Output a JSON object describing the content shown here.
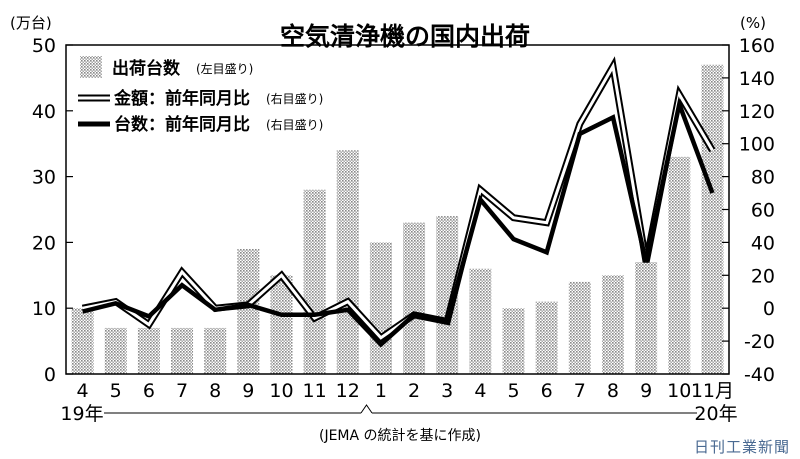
{
  "chart_data": {
    "type": "bar+line",
    "title": "空気清浄機の国内出荷",
    "y_left_unit": "(万台)",
    "y_right_unit": "(%)",
    "y_left_range": [
      0,
      50
    ],
    "y_left_ticks": [
      "0",
      "10",
      "20",
      "30",
      "40",
      "50"
    ],
    "y_right_range": [
      -40,
      160
    ],
    "y_right_ticks": [
      "-40",
      "-20",
      "0",
      "20",
      "40",
      "60",
      "80",
      "100",
      "120",
      "140",
      "160"
    ],
    "categories": [
      "4",
      "5",
      "6",
      "7",
      "8",
      "9",
      "10",
      "11",
      "12",
      "1",
      "2",
      "3",
      "4",
      "5",
      "6",
      "7",
      "8",
      "9",
      "10",
      "11月"
    ],
    "year_start_label": "19年",
    "year_end_label": "20年",
    "series": [
      {
        "name": "出荷台数",
        "legend_note": "(左目盛り)",
        "axis": "left",
        "kind": "bar",
        "values": [
          10,
          7,
          7,
          7,
          7,
          19,
          15,
          28,
          34,
          20,
          23,
          24,
          16,
          10,
          11,
          14,
          15,
          17,
          33,
          47
        ]
      },
      {
        "name": "金額：前年同月比",
        "legend_note": "(右目盛り)",
        "axis": "right",
        "kind": "line-outline",
        "values": [
          0,
          4,
          -10,
          22,
          0,
          2,
          20,
          -6,
          4,
          -18,
          -4,
          -8,
          72,
          55,
          52,
          112,
          147,
          28,
          130,
          96
        ]
      },
      {
        "name": "台数：前年同月比",
        "legend_note": "(右目盛り)",
        "axis": "right",
        "kind": "line-solid",
        "values": [
          -2,
          3,
          -5,
          14,
          -1,
          2,
          -4,
          -4,
          -1,
          -22,
          -4,
          -8,
          66,
          42,
          34,
          106,
          116,
          28,
          124,
          70
        ]
      }
    ],
    "note": "(JEMA の統計を基に作成)"
  },
  "credit": "日刊工業新聞"
}
